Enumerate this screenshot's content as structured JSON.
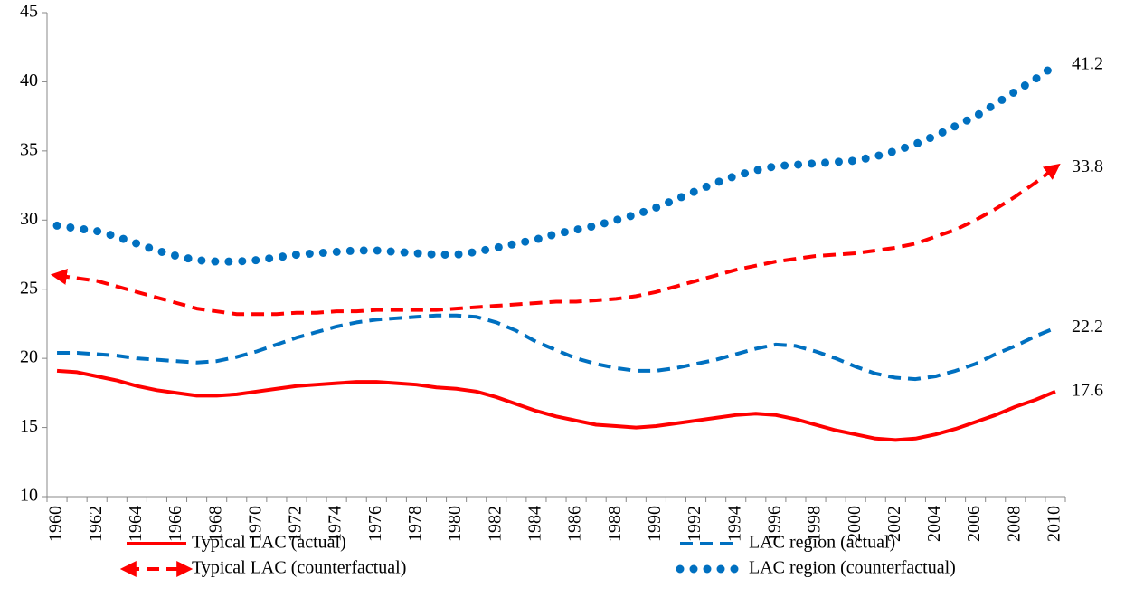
{
  "chart_data": {
    "type": "line",
    "categories": [
      1960,
      null,
      1962,
      null,
      1964,
      null,
      1966,
      null,
      1968,
      null,
      1970,
      null,
      1972,
      null,
      1974,
      null,
      1976,
      null,
      1978,
      null,
      1980,
      null,
      1982,
      null,
      1984,
      null,
      1986,
      null,
      1988,
      null,
      1990,
      null,
      1992,
      null,
      1994,
      null,
      1996,
      null,
      1998,
      null,
      2000,
      null,
      2002,
      null,
      2004,
      null,
      2006,
      null,
      2008,
      null,
      2010
    ],
    "series": [
      {
        "name": "Typical LAC (actual)",
        "color": "#ff0000",
        "style": "solid",
        "values": [
          19.1,
          19.0,
          18.7,
          18.4,
          18.0,
          17.7,
          17.5,
          17.3,
          17.3,
          17.4,
          17.6,
          17.8,
          18.0,
          18.1,
          18.2,
          18.3,
          18.3,
          18.2,
          18.1,
          17.9,
          17.8,
          17.6,
          17.2,
          16.7,
          16.2,
          15.8,
          15.5,
          15.2,
          15.1,
          15.0,
          15.1,
          15.3,
          15.5,
          15.7,
          15.9,
          16.0,
          15.9,
          15.6,
          15.2,
          14.8,
          14.5,
          14.2,
          14.1,
          14.2,
          14.5,
          14.9,
          15.4,
          15.9,
          16.5,
          17.0,
          17.6
        ]
      },
      {
        "name": "LAC region (actual)",
        "color": "#0070c0",
        "style": "dashed",
        "values": [
          20.4,
          20.4,
          20.3,
          20.2,
          20.0,
          19.9,
          19.8,
          19.7,
          19.8,
          20.1,
          20.5,
          21.0,
          21.5,
          21.9,
          22.3,
          22.6,
          22.8,
          22.9,
          23.0,
          23.1,
          23.1,
          23.0,
          22.6,
          22.0,
          21.2,
          20.6,
          20.0,
          19.6,
          19.3,
          19.1,
          19.1,
          19.3,
          19.6,
          19.9,
          20.3,
          20.7,
          21.0,
          20.9,
          20.5,
          20.0,
          19.4,
          18.9,
          18.6,
          18.5,
          18.7,
          19.1,
          19.6,
          20.3,
          20.9,
          21.6,
          22.2
        ]
      },
      {
        "name": "Typical LAC (counterfactual)",
        "color": "#ff0000",
        "style": "dashed-arrow",
        "values": [
          26.0,
          25.8,
          25.6,
          25.2,
          24.8,
          24.4,
          24.0,
          23.6,
          23.4,
          23.2,
          23.2,
          23.2,
          23.3,
          23.3,
          23.4,
          23.4,
          23.5,
          23.5,
          23.5,
          23.5,
          23.6,
          23.7,
          23.8,
          23.9,
          24.0,
          24.1,
          24.1,
          24.2,
          24.3,
          24.5,
          24.8,
          25.2,
          25.6,
          26.0,
          26.4,
          26.7,
          27.0,
          27.2,
          27.4,
          27.5,
          27.6,
          27.8,
          28.0,
          28.3,
          28.8,
          29.3,
          30.0,
          30.8,
          31.7,
          32.7,
          33.8
        ]
      },
      {
        "name": "LAC region (counterfactual)",
        "color": "#0070c0",
        "style": "dotted",
        "values": [
          29.6,
          29.4,
          29.2,
          28.8,
          28.3,
          27.8,
          27.4,
          27.1,
          27.0,
          27.0,
          27.1,
          27.3,
          27.5,
          27.6,
          27.7,
          27.8,
          27.8,
          27.7,
          27.6,
          27.5,
          27.5,
          27.7,
          28.0,
          28.3,
          28.6,
          29.0,
          29.3,
          29.6,
          30.0,
          30.4,
          30.9,
          31.5,
          32.1,
          32.7,
          33.2,
          33.6,
          33.9,
          34.0,
          34.1,
          34.2,
          34.3,
          34.6,
          35.0,
          35.5,
          36.1,
          36.8,
          37.5,
          38.4,
          39.3,
          40.2,
          41.2
        ]
      }
    ],
    "ylim": [
      10,
      45
    ],
    "yticks": [
      10,
      15,
      20,
      25,
      30,
      35,
      40,
      45
    ],
    "grid": false
  }
}
